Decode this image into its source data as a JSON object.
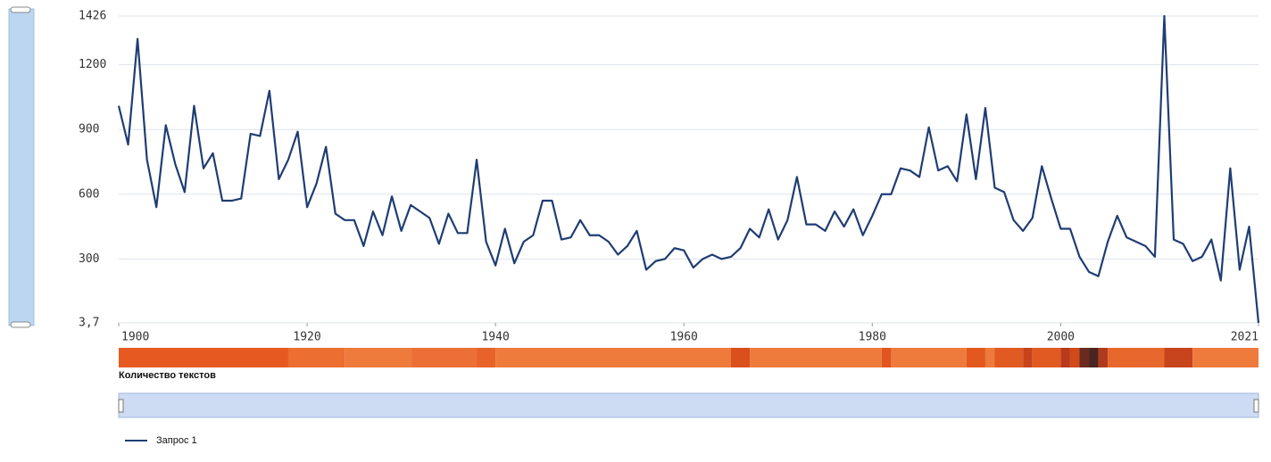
{
  "chart_data": {
    "type": "line",
    "x": [
      1900,
      1901,
      1902,
      1903,
      1904,
      1905,
      1906,
      1907,
      1908,
      1909,
      1910,
      1911,
      1912,
      1913,
      1914,
      1915,
      1916,
      1917,
      1918,
      1919,
      1920,
      1921,
      1922,
      1923,
      1924,
      1925,
      1926,
      1927,
      1928,
      1929,
      1930,
      1931,
      1932,
      1933,
      1934,
      1935,
      1936,
      1937,
      1938,
      1939,
      1940,
      1941,
      1942,
      1943,
      1944,
      1945,
      1946,
      1947,
      1948,
      1949,
      1950,
      1951,
      1952,
      1953,
      1954,
      1955,
      1956,
      1957,
      1958,
      1959,
      1960,
      1961,
      1962,
      1963,
      1964,
      1965,
      1966,
      1967,
      1968,
      1969,
      1970,
      1971,
      1972,
      1973,
      1974,
      1975,
      1976,
      1977,
      1978,
      1979,
      1980,
      1981,
      1982,
      1983,
      1984,
      1985,
      1986,
      1987,
      1988,
      1989,
      1990,
      1991,
      1992,
      1993,
      1994,
      1995,
      1996,
      1997,
      1998,
      1999,
      2000,
      2001,
      2002,
      2003,
      2004,
      2005,
      2006,
      2007,
      2008,
      2009,
      2010,
      2011,
      2012,
      2013,
      2014,
      2015,
      2016,
      2017,
      2018,
      2019,
      2020,
      2021
    ],
    "series": [
      {
        "name": "Запрос 1",
        "color": "#1f3d73",
        "values": [
          1010,
          830,
          1320,
          760,
          540,
          920,
          740,
          610,
          1010,
          720,
          790,
          570,
          570,
          580,
          880,
          870,
          1080,
          670,
          760,
          890,
          540,
          650,
          820,
          510,
          480,
          480,
          360,
          520,
          410,
          590,
          430,
          550,
          520,
          490,
          370,
          510,
          420,
          420,
          760,
          380,
          270,
          440,
          280,
          380,
          410,
          570,
          570,
          390,
          400,
          480,
          410,
          410,
          380,
          320,
          360,
          430,
          250,
          290,
          300,
          350,
          340,
          260,
          300,
          320,
          300,
          310,
          350,
          440,
          400,
          530,
          390,
          480,
          680,
          460,
          460,
          430,
          520,
          450,
          530,
          410,
          500,
          600,
          600,
          720,
          710,
          680,
          910,
          710,
          730,
          660,
          970,
          670,
          1000,
          630,
          610,
          480,
          430,
          490,
          730,
          580,
          440,
          440,
          310,
          240,
          220,
          380,
          500,
          400,
          380,
          360,
          310,
          1426,
          390,
          370,
          290,
          310,
          390,
          200,
          720,
          250,
          450,
          3.7
        ]
      }
    ],
    "xlim": [
      1900,
      2021
    ],
    "xticks": [
      1900,
      1920,
      1940,
      1960,
      1980,
      2000,
      2021
    ],
    "ylim": [
      3.7,
      1426
    ],
    "yticks": [
      {
        "value": 3.7,
        "label": "3,7"
      },
      300,
      600,
      900,
      1200,
      1426
    ],
    "grid": true,
    "heatmap": {
      "label": "Количество текстов",
      "segments": [
        {
          "from": 1900,
          "color": "#e65a22"
        },
        {
          "from": 1918,
          "color": "#ec6e30"
        },
        {
          "from": 1924,
          "color": "#ee7a3c"
        },
        {
          "from": 1931,
          "color": "#ec7035"
        },
        {
          "from": 1938,
          "color": "#e86329"
        },
        {
          "from": 1940,
          "color": "#ee7a3c"
        },
        {
          "from": 1965,
          "color": "#d9501c"
        },
        {
          "from": 1967,
          "color": "#ee7a3c"
        },
        {
          "from": 1981,
          "color": "#e0561f"
        },
        {
          "from": 1982,
          "color": "#ee7a3c"
        },
        {
          "from": 1990,
          "color": "#e3581f"
        },
        {
          "from": 1992,
          "color": "#ee7a3c"
        },
        {
          "from": 1993,
          "color": "#e05a22"
        },
        {
          "from": 1996,
          "color": "#c8431b"
        },
        {
          "from": 1997,
          "color": "#e05a22"
        },
        {
          "from": 2000,
          "color": "#b83a1a"
        },
        {
          "from": 2001,
          "color": "#d04a1c"
        },
        {
          "from": 2002,
          "color": "#6a2a1f"
        },
        {
          "from": 2003,
          "color": "#4a2520"
        },
        {
          "from": 2004,
          "color": "#b03a1c"
        },
        {
          "from": 2005,
          "color": "#e8672c"
        },
        {
          "from": 2011,
          "color": "#c8441c"
        },
        {
          "from": 2014,
          "color": "#ee7a3c"
        }
      ]
    }
  }
}
